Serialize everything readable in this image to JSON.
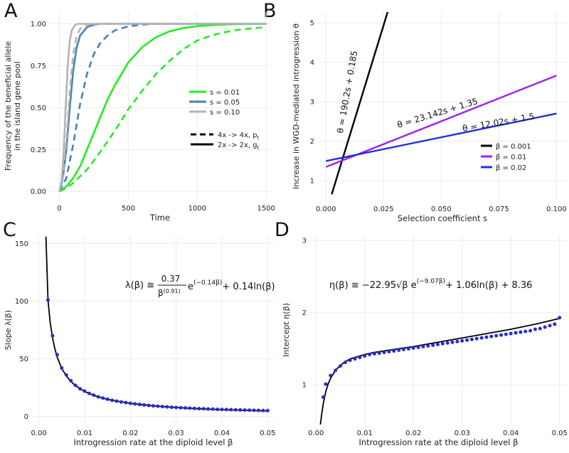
{
  "panel_labels": [
    "A",
    "B",
    "C",
    "D"
  ],
  "colors": {
    "green": "#22ee22",
    "steel": "#4682b4",
    "grey": "#b3b3b3",
    "black": "#000000",
    "purple": "#a020f0",
    "blue": "#1f2fe0",
    "dots": "#2a2ad0",
    "grid": "#ebebeb",
    "text": "#222222"
  },
  "chart_data": [
    {
      "id": "A",
      "type": "line",
      "xlabel": "Time",
      "ylabel": "Frequency of the beneficial allele in the island gene pool",
      "ylabel_lines": [
        "Frequency of the beneficial allele",
        "in the island gene pool"
      ],
      "xlim": [
        -70,
        1530
      ],
      "ylim": [
        -0.05,
        1.07
      ],
      "xticks": [
        0,
        500,
        1000,
        1500
      ],
      "xtick_labels": [
        "0",
        "500",
        "1000",
        "1500"
      ],
      "yticks": [
        0,
        0.25,
        0.5,
        0.75,
        1.0
      ],
      "ytick_labels": [
        "0.00",
        "0.25",
        "0.50",
        "0.75",
        "1.00"
      ],
      "legend_color": [
        {
          "label": "s = 0.01",
          "color": "#22ee22"
        },
        {
          "label": "s = 0.05",
          "color": "#4682b4"
        },
        {
          "label": "s = 0.10",
          "color": "#b3b3b3"
        }
      ],
      "legend_style": [
        {
          "label": "4x -> 4x,",
          "math": "p",
          "sub": "t",
          "dashed": true
        },
        {
          "label": "2x -> 2x,",
          "math": "g",
          "sub": "t",
          "dashed": false
        }
      ],
      "series": [
        {
          "name": "s = 0.01, 2x -> 2x",
          "color": "#22ee22",
          "dashed": false,
          "x": [
            0,
            50,
            100,
            150,
            200,
            250,
            300,
            350,
            400,
            500,
            600,
            700,
            800,
            900,
            1000,
            1100,
            1200,
            1300,
            1400,
            1500
          ],
          "y": [
            0.0,
            0.03,
            0.08,
            0.15,
            0.25,
            0.35,
            0.45,
            0.55,
            0.63,
            0.77,
            0.86,
            0.92,
            0.955,
            0.975,
            0.986,
            0.992,
            0.996,
            0.998,
            0.999,
            1.0
          ]
        },
        {
          "name": "s = 0.01, 4x -> 4x",
          "color": "#22ee22",
          "dashed": true,
          "x": [
            0,
            50,
            100,
            200,
            300,
            400,
            500,
            600,
            700,
            800,
            900,
            1000,
            1100,
            1200,
            1300,
            1400,
            1500
          ],
          "y": [
            0.0,
            0.02,
            0.05,
            0.13,
            0.24,
            0.36,
            0.49,
            0.6,
            0.7,
            0.78,
            0.85,
            0.9,
            0.93,
            0.95,
            0.965,
            0.973,
            0.98
          ]
        },
        {
          "name": "s = 0.05, 2x -> 2x",
          "color": "#4682b4",
          "dashed": false,
          "x": [
            0,
            25,
            50,
            75,
            100,
            125,
            150,
            200,
            250,
            300,
            400,
            600,
            1000,
            1500
          ],
          "y": [
            0.0,
            0.08,
            0.25,
            0.5,
            0.72,
            0.86,
            0.93,
            0.98,
            0.995,
            1.0,
            1.0,
            1.0,
            1.0,
            1.0
          ]
        },
        {
          "name": "s = 0.05, 4x -> 4x",
          "color": "#4682b4",
          "dashed": true,
          "x": [
            0,
            50,
            100,
            150,
            200,
            250,
            300,
            350,
            400,
            500,
            600,
            700,
            800,
            1000,
            1500
          ],
          "y": [
            0.0,
            0.08,
            0.28,
            0.52,
            0.7,
            0.82,
            0.89,
            0.93,
            0.96,
            0.985,
            0.995,
            1.0,
            1.0,
            1.0,
            1.0
          ]
        },
        {
          "name": "s = 0.10, 2x -> 2x",
          "color": "#b3b3b3",
          "dashed": false,
          "x": [
            0,
            15,
            30,
            45,
            60,
            75,
            90,
            110,
            130,
            150,
            200,
            300,
            1500
          ],
          "y": [
            0.0,
            0.06,
            0.22,
            0.5,
            0.75,
            0.9,
            0.96,
            0.99,
            1.0,
            1.0,
            1.0,
            1.0,
            1.0
          ]
        },
        {
          "name": "s = 0.10, 4x -> 4x",
          "color": "#b3b3b3",
          "dashed": true,
          "x": [
            0,
            25,
            50,
            75,
            100,
            125,
            150,
            200,
            250,
            300,
            400,
            1500
          ],
          "y": [
            0.0,
            0.08,
            0.3,
            0.6,
            0.82,
            0.93,
            0.97,
            0.995,
            1.0,
            1.0,
            1.0,
            1.0
          ]
        }
      ]
    },
    {
      "id": "B",
      "type": "line",
      "xlabel": "Selection coefficient s",
      "ylabel": "Increase in WGD-mediated introgression θ",
      "xlim": [
        -0.0035,
        0.1045
      ],
      "ylim": [
        0.5,
        5.27
      ],
      "xticks": [
        0.0,
        0.025,
        0.05,
        0.075,
        0.1
      ],
      "xtick_labels": [
        "0.000",
        "0.025",
        "0.050",
        "0.075",
        "0.100"
      ],
      "yticks": [
        1,
        2,
        3,
        4,
        5
      ],
      "ytick_labels": [
        "1",
        "2",
        "3",
        "4",
        "5"
      ],
      "legend": [
        {
          "label": "β = 0.001",
          "color": "#000000"
        },
        {
          "label": "β = 0.01",
          "color": "#a020f0"
        },
        {
          "label": "β = 0.02",
          "color": "#1f2fe0"
        }
      ],
      "series": [
        {
          "name": "β = 0.001",
          "color": "#000000",
          "slope": 190.2,
          "intercept": 0.185,
          "x": [
            0.0025,
            0.0268
          ],
          "y": [
            0.661,
            5.282
          ],
          "equation": "θ = 190.2s + 0.185"
        },
        {
          "name": "β = 0.01",
          "color": "#a020f0",
          "slope": 23.142,
          "intercept": 1.35,
          "x": [
            0.0,
            0.1
          ],
          "y": [
            1.35,
            3.664
          ],
          "equation": "θ = 23.142s + 1.35"
        },
        {
          "name": "β = 0.02",
          "color": "#1f2fe0",
          "slope": 12.02,
          "intercept": 1.5,
          "x": [
            0.0,
            0.1
          ],
          "y": [
            1.5,
            2.702
          ],
          "equation": "θ = 12.02s + 1.5"
        }
      ]
    },
    {
      "id": "C",
      "type": "scatter",
      "xlabel": "Introgression rate at the diploid level β",
      "ylabel": "Slope λ(β)",
      "xlim": [
        -0.0015,
        0.0515
      ],
      "ylim": [
        -7,
        157
      ],
      "xticks": [
        0.0,
        0.01,
        0.02,
        0.03,
        0.04,
        0.05
      ],
      "xtick_labels": [
        "0.00",
        "0.01",
        "0.02",
        "0.03",
        "0.04",
        "0.05"
      ],
      "yticks": [
        0,
        50,
        100,
        150
      ],
      "ytick_labels": [
        "0",
        "50",
        "100",
        "150"
      ],
      "formula": {
        "lhs": "λ(β)",
        "approx": "≅",
        "num": "0.37",
        "den_base": "β",
        "den_exp": "(0.91)",
        "exp_base": "e",
        "exp_sup": "(−0.14β)",
        "tail": "+ 0.14ln(β)"
      },
      "fit": {
        "name": "λ(β) fit",
        "color": "#000000",
        "x": [
          0.00155,
          0.002,
          0.0025,
          0.003,
          0.0035,
          0.004,
          0.005,
          0.006,
          0.007,
          0.008,
          0.01,
          0.012,
          0.015,
          0.02,
          0.025,
          0.03,
          0.035,
          0.04,
          0.045,
          0.05
        ],
        "y": [
          156.0,
          100.5,
          80.8,
          68.0,
          58.5,
          51.5,
          41.6,
          35.1,
          30.3,
          26.7,
          21.7,
          18.2,
          14.8,
          11.3,
          9.2,
          7.8,
          6.7,
          5.9,
          5.3,
          4.8
        ]
      },
      "points": {
        "name": "λ(β) estimates",
        "color": "#2a2ad0",
        "x": [
          0.002,
          0.003,
          0.004,
          0.005,
          0.006,
          0.007,
          0.008,
          0.009,
          0.01,
          0.011,
          0.012,
          0.013,
          0.014,
          0.015,
          0.016,
          0.017,
          0.018,
          0.019,
          0.02,
          0.021,
          0.022,
          0.023,
          0.024,
          0.025,
          0.026,
          0.027,
          0.028,
          0.029,
          0.03,
          0.031,
          0.032,
          0.033,
          0.034,
          0.035,
          0.036,
          0.037,
          0.038,
          0.039,
          0.04,
          0.041,
          0.042,
          0.043,
          0.044,
          0.045,
          0.046,
          0.047,
          0.048,
          0.049,
          0.05
        ],
        "y": [
          101,
          70,
          53.5,
          42,
          36,
          31,
          27,
          24,
          22,
          20,
          18.5,
          17,
          16,
          15,
          14,
          13.3,
          12.6,
          12,
          11.4,
          10.9,
          10.4,
          10,
          9.6,
          9.2,
          8.9,
          8.6,
          8.3,
          8,
          7.8,
          7.6,
          7.4,
          7.2,
          7,
          6.8,
          6.7,
          6.5,
          6.4,
          6.2,
          6.1,
          6,
          5.9,
          5.8,
          5.7,
          5.6,
          5.5,
          5.4,
          5.3,
          5.2,
          5.1
        ]
      }
    },
    {
      "id": "D",
      "type": "scatter",
      "xlabel": "Introgression rate at the diploid level β",
      "ylabel": "Intercept η(β)",
      "xlim": [
        -0.0012,
        0.0515
      ],
      "ylim": [
        0.45,
        3.07
      ],
      "xticks": [
        0.0,
        0.01,
        0.02,
        0.03,
        0.04,
        0.05
      ],
      "xtick_labels": [
        "0.00",
        "0.01",
        "0.02",
        "0.03",
        "0.04",
        "0.05"
      ],
      "yticks": [
        1,
        2,
        3
      ],
      "ytick_labels": [
        "1",
        "2",
        "3"
      ],
      "formula": {
        "lhs": "η(β)",
        "approx": "≅",
        "text": "−22.95√β e",
        "exp_sup": "(−9.07β)",
        "tail": "+ 1.06ln(β) + 8.36"
      },
      "fit": {
        "name": "η(β) fit",
        "color": "#000000",
        "x": [
          0.0009,
          0.0012,
          0.0015,
          0.002,
          0.0025,
          0.003,
          0.004,
          0.005,
          0.006,
          0.007,
          0.008,
          0.01,
          0.012,
          0.015,
          0.02,
          0.025,
          0.03,
          0.035,
          0.04,
          0.045,
          0.05
        ],
        "y": [
          0.45,
          0.6,
          0.74,
          0.9,
          1.01,
          1.09,
          1.2,
          1.27,
          1.32,
          1.36,
          1.38,
          1.42,
          1.45,
          1.48,
          1.53,
          1.59,
          1.65,
          1.71,
          1.77,
          1.84,
          1.92
        ]
      },
      "points": {
        "name": "η(β) estimates",
        "color": "#2a2ad0",
        "x": [
          0.0015,
          0.002,
          0.003,
          0.004,
          0.005,
          0.006,
          0.007,
          0.008,
          0.009,
          0.01,
          0.011,
          0.012,
          0.013,
          0.014,
          0.015,
          0.016,
          0.017,
          0.018,
          0.019,
          0.02,
          0.021,
          0.022,
          0.023,
          0.024,
          0.025,
          0.026,
          0.027,
          0.028,
          0.029,
          0.03,
          0.031,
          0.032,
          0.033,
          0.034,
          0.035,
          0.036,
          0.037,
          0.038,
          0.039,
          0.04,
          0.041,
          0.042,
          0.043,
          0.044,
          0.045,
          0.046,
          0.047,
          0.048,
          0.049,
          0.05
        ],
        "y": [
          0.83,
          1.01,
          1.13,
          1.2,
          1.26,
          1.31,
          1.34,
          1.36,
          1.38,
          1.4,
          1.42,
          1.43,
          1.44,
          1.45,
          1.46,
          1.47,
          1.48,
          1.49,
          1.5,
          1.51,
          1.52,
          1.53,
          1.54,
          1.55,
          1.56,
          1.57,
          1.58,
          1.59,
          1.6,
          1.61,
          1.62,
          1.63,
          1.64,
          1.65,
          1.66,
          1.67,
          1.68,
          1.69,
          1.7,
          1.71,
          1.72,
          1.73,
          1.74,
          1.75,
          1.77,
          1.78,
          1.8,
          1.82,
          1.84,
          1.93
        ]
      }
    }
  ]
}
